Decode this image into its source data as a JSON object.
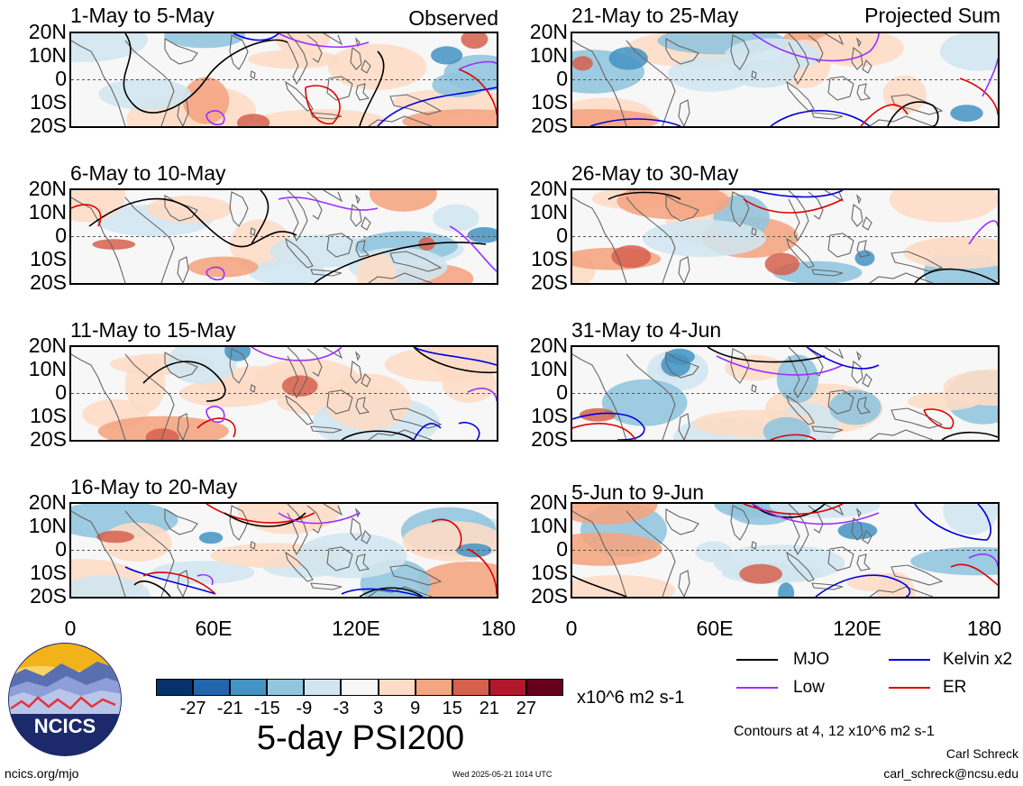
{
  "panels": [
    {
      "title": "1-May to 5-May",
      "corner": "Observed"
    },
    {
      "title": "21-May to 25-May",
      "corner": "Projected Sum"
    },
    {
      "title": "6-May to 10-May",
      "corner": ""
    },
    {
      "title": "26-May to 30-May",
      "corner": ""
    },
    {
      "title": "11-May to 15-May",
      "corner": ""
    },
    {
      "title": "31-May to 4-Jun",
      "corner": ""
    },
    {
      "title": "16-May to 20-May",
      "corner": ""
    },
    {
      "title": "5-Jun to 9-Jun",
      "corner": ""
    }
  ],
  "lat_labels": [
    "20N",
    "10N",
    "0",
    "10S",
    "20S"
  ],
  "lon_labels": [
    "0",
    "60E",
    "120E",
    "180"
  ],
  "colorbar": {
    "colors": [
      "#08306b",
      "#2166ac",
      "#4393c3",
      "#92c5de",
      "#d1e5f0",
      "#f7f7f7",
      "#fddbc7",
      "#f4a582",
      "#d6604d",
      "#b2182b",
      "#67001f"
    ],
    "labels": [
      "-27",
      "-21",
      "-15",
      "-9",
      "-3",
      "3",
      "9",
      "15",
      "21",
      "27"
    ],
    "units": "x10^6 m2 s-1"
  },
  "title": "5-day PSI200",
  "legend": [
    {
      "label": "MJO",
      "color": "#000000"
    },
    {
      "label": "Kelvin x2",
      "color": "#0000dd"
    },
    {
      "label": "Low",
      "color": "#9b30ff"
    },
    {
      "label": "ER",
      "color": "#e00000"
    }
  ],
  "contours_note": "Contours at 4, 12 x10^6 m2 s-1",
  "author": "Carl Schreck",
  "email": "carl_schreck@ncsu.edu",
  "site": "ncics.org/mjo",
  "timestamp": "Wed 2025-05-21 1014 UTC",
  "logo_text": "NCICS"
}
